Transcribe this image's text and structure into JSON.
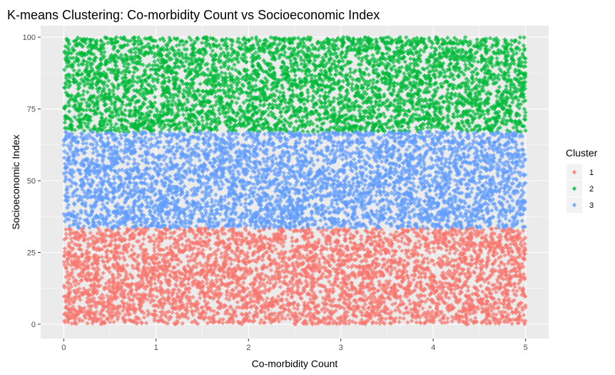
{
  "chart_data": {
    "type": "scatter",
    "title": "K-means Clustering: Co-morbidity Count vs Socioeconomic Index",
    "xlabel": "Co-morbidity Count",
    "ylabel": "Socioeconomic Index",
    "xlim": [
      -0.25,
      5.25
    ],
    "ylim": [
      -5,
      104
    ],
    "x_ticks": [
      0,
      1,
      2,
      3,
      4,
      5
    ],
    "x_tick_labels": [
      "0",
      "1",
      "2",
      "3",
      "4",
      "5"
    ],
    "y_ticks": [
      0,
      25,
      50,
      75,
      100
    ],
    "y_tick_labels": [
      "0",
      "25",
      "50",
      "75",
      "100"
    ],
    "grid": true,
    "legend": {
      "title": "Cluster",
      "placement": "right",
      "entries": [
        "1",
        "2",
        "3"
      ]
    },
    "series": [
      {
        "name": "1",
        "color": "#F8766D",
        "x_range": [
          0,
          5
        ],
        "y_range": [
          0,
          33.5
        ],
        "approx_points": 4500
      },
      {
        "name": "2",
        "color": "#00BA38",
        "x_range": [
          0,
          5
        ],
        "y_range": [
          67,
          100
        ],
        "approx_points": 4500
      },
      {
        "name": "3",
        "color": "#619CFF",
        "x_range": [
          0,
          5
        ],
        "y_range": [
          33.5,
          67
        ],
        "approx_points": 4500
      }
    ]
  },
  "colors": {
    "panel_background": "#EBEBEB",
    "grid_major": "#FFFFFF",
    "legend_key_background": "#F2F2F2"
  }
}
